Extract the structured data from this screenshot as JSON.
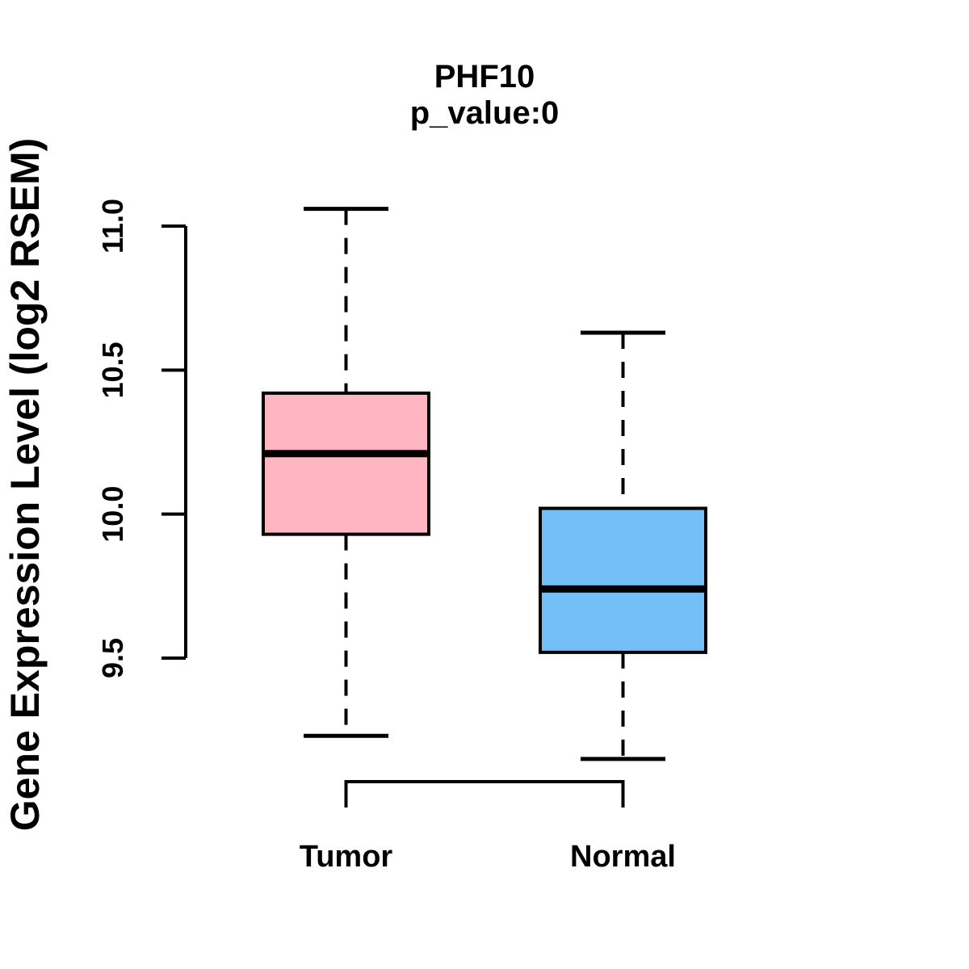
{
  "chart_data": {
    "type": "boxplot",
    "title": "PHF10",
    "subtitle": "p_value:0",
    "ylabel": "Gene Expression Level (log2 RSEM)",
    "xlabel": "",
    "categories": [
      "Tumor",
      "Normal"
    ],
    "y_ticks": [
      9.5,
      10.0,
      10.5,
      11.0
    ],
    "ylim": [
      9.1,
      11.1
    ],
    "grid": false,
    "legend": "none",
    "whisker_style": "dashed",
    "box_edge_color": "#000000",
    "median_color": "#000000",
    "background_color": "#FFFFFF",
    "series": [
      {
        "name": "Tumor",
        "fill": "#FFB6C1",
        "whisker_low": 9.23,
        "q1": 9.93,
        "median": 10.21,
        "q3": 10.42,
        "whisker_high": 11.06
      },
      {
        "name": "Normal",
        "fill": "#74BFF7",
        "whisker_low": 9.15,
        "q1": 9.52,
        "median": 9.74,
        "q3": 10.02,
        "whisker_high": 10.63
      }
    ]
  }
}
